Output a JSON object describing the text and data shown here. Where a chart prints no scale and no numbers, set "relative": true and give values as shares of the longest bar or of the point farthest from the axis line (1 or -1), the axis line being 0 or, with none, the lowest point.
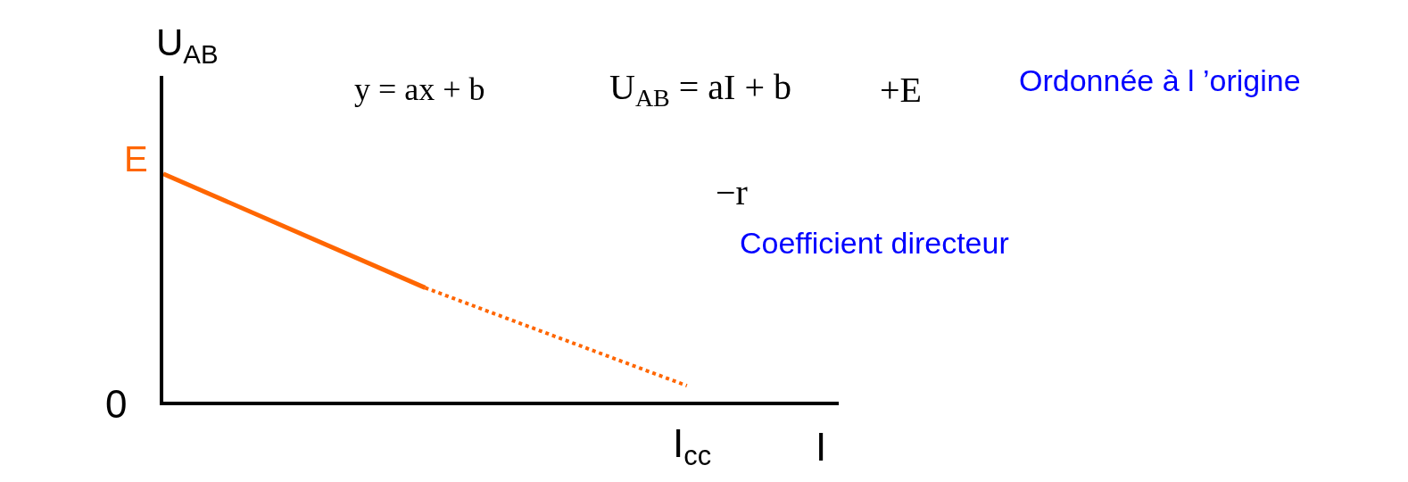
{
  "chart_data": {
    "type": "line",
    "relative": true,
    "xlabel": "I",
    "ylabel": "U$_{AB}$",
    "categories": [
      null,
      null,
      null
    ],
    "series": [
      {
        "color": "#ff6600",
        "values": [
          1,
          0.5,
          null
        ],
        "line_style": "solid"
      },
      {
        "color": "#ff6600",
        "values": [
          null,
          0.5,
          0.07
        ],
        "line_style": "dotted"
      }
    ],
    "annotations": [
      "y = ax + b",
      "U$_{AB}$ = aI + b",
      "+E",
      "Ordonnée à l ’origine",
      "−r",
      "Coefficient directeur",
      "E",
      "0",
      "I$_{cc}$"
    ],
    "marker": "none"
  }
}
